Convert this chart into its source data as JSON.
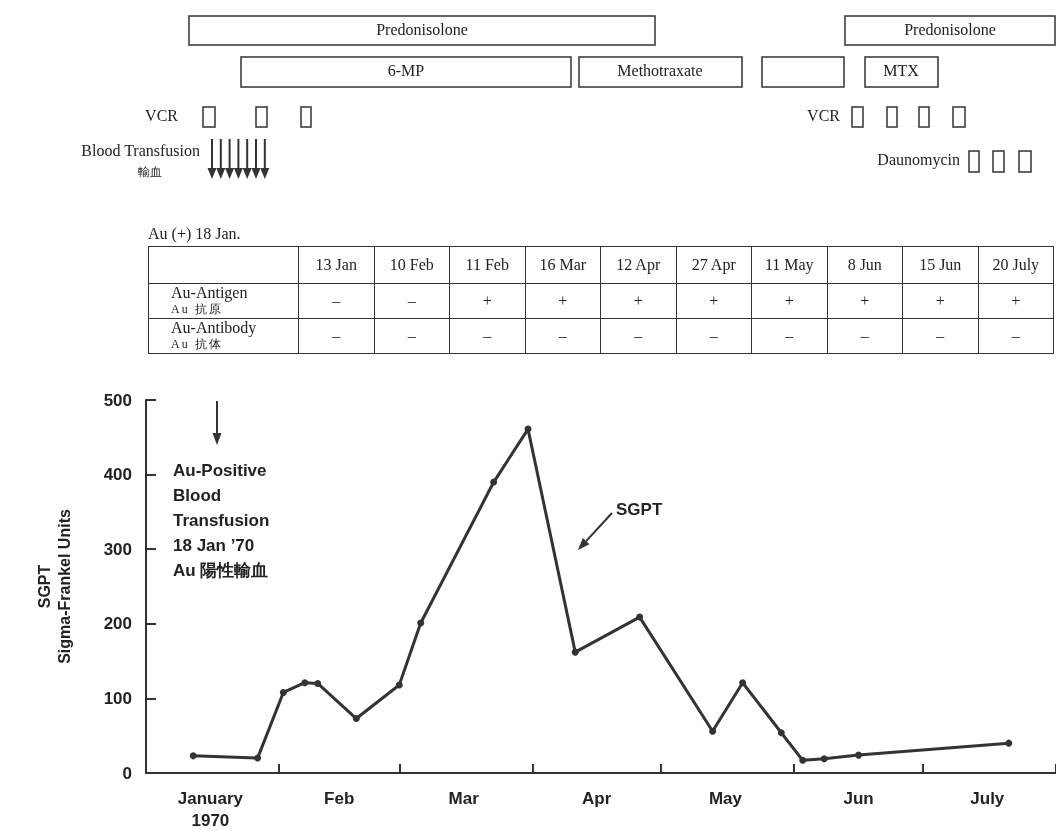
{
  "chart_data": [
    {
      "type": "other",
      "annotations": [
        "Predonisolone",
        "Predonisolone",
        "6-MP",
        "Methotraxate",
        "MTX",
        "VCR",
        "VCR",
        "Blood Transfusion",
        "輸血",
        "Daunomycin"
      ]
    },
    {
      "type": "heatmap",
      "title": "Au (+) 18 Jan.",
      "categories": [
        "13 Jan",
        "10 Feb",
        "11 Feb",
        "16 Mar",
        "12 Apr",
        "27 Apr",
        "11 May",
        "8 Jun",
        "15 Jun",
        "20 July"
      ],
      "y_categories": [
        "Au-Antigen\nAu 抗原",
        "Au-Antibody\nAu 抗体"
      ],
      "cells": [
        [
          null,
          null,
          null,
          null,
          null,
          null,
          null,
          null,
          null,
          null
        ],
        [
          null,
          null,
          null,
          null,
          null,
          null,
          null,
          null,
          null,
          null
        ]
      ],
      "cell_labels": [
        [
          "–",
          "–",
          "+",
          "+",
          "+",
          "+",
          "+",
          "+",
          "+",
          "+"
        ],
        [
          "–",
          "–",
          "–",
          "–",
          "–",
          "–",
          "–",
          "–",
          "–",
          "–"
        ]
      ]
    },
    {
      "type": "line",
      "ylabel": "SGPT\nSigma-Frankel Units",
      "x": [
        "1970-01-12",
        "1970-01-27",
        "1970-02-02",
        "1970-02-07",
        "1970-02-10",
        "1970-02-19",
        "1970-03-01",
        "1970-03-06",
        "1970-03-23",
        "1970-03-31",
        "1970-04-11",
        "1970-04-26",
        "1970-05-13",
        "1970-05-20",
        "1970-05-29",
        "1970-06-03",
        "1970-06-08",
        "1970-06-16",
        "1970-07-21"
      ],
      "series": [
        {
          "color": "#333333",
          "values": [
            23,
            20,
            108,
            121,
            120,
            73,
            118,
            201,
            390,
            461,
            162,
            209,
            56,
            121,
            54,
            17,
            19,
            24,
            40
          ]
        }
      ],
      "xlim": [
        "1970-01-01",
        "1970-08-01"
      ],
      "xticks": [
        {
          "value": "1970-02-01",
          "label": null
        },
        {
          "value": "1970-03-01",
          "label": null
        },
        {
          "value": "1970-04-01",
          "label": null
        },
        {
          "value": "1970-05-01",
          "label": null
        },
        {
          "value": "1970-06-01",
          "label": null
        },
        {
          "value": "1970-07-01",
          "label": null
        },
        {
          "value": "1970-08-01",
          "label": null
        },
        {
          "value": "1970-01-16",
          "label": "January\n1970"
        },
        {
          "value": "1970-02-15",
          "label": "Feb"
        },
        {
          "value": "1970-03-16",
          "label": "Mar"
        },
        {
          "value": "1970-04-16",
          "label": "Apr"
        },
        {
          "value": "1970-05-16",
          "label": "May"
        },
        {
          "value": "1970-06-16",
          "label": "Jun"
        },
        {
          "value": "1970-07-16",
          "label": "July"
        }
      ],
      "ylim": [
        0,
        500
      ],
      "yticks": [
        0,
        100,
        200,
        300,
        400,
        500
      ],
      "grid": false,
      "marker": "circle",
      "line_style": "solid",
      "annotations": [
        "Au-Positive\nBlood\nTransfusion\n18 Jan ’70\nAu 陽性輸血",
        "SGPT"
      ]
    }
  ]
}
